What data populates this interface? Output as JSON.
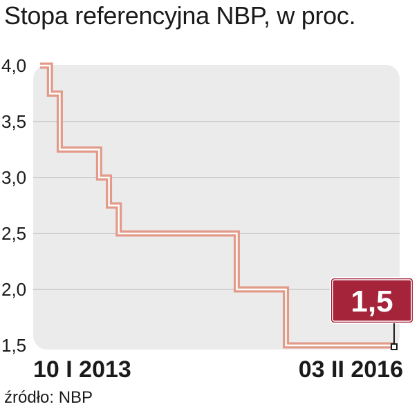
{
  "title": "Stopa referencyjna NBP, w proc.",
  "source": "źródło: NBP",
  "colors": {
    "line": "#e39a88",
    "panel": "#ebebeb",
    "grid": "#c8c8c8",
    "callout": "#a5243a"
  },
  "chart_data": {
    "type": "line",
    "step": true,
    "title": "Stopa referencyjna NBP, w proc.",
    "xlabel": "",
    "ylabel": "",
    "ylim": [
      1.5,
      4.0
    ],
    "yticks": [
      "4,0",
      "3,5",
      "3,0",
      "2,5",
      "2,0",
      "1,5"
    ],
    "ytick_values": [
      4.0,
      3.5,
      3.0,
      2.5,
      2.0,
      1.5
    ],
    "x_start_label": "10 I 2013",
    "x_end_label": "03 II 2016",
    "xlim": [
      0,
      36
    ],
    "points": [
      {
        "x": 0,
        "y": 4.0
      },
      {
        "x": 1,
        "y": 3.75
      },
      {
        "x": 2,
        "y": 3.25
      },
      {
        "x": 6,
        "y": 3.0
      },
      {
        "x": 7,
        "y": 2.75
      },
      {
        "x": 8,
        "y": 2.5
      },
      {
        "x": 20,
        "y": 2.0
      },
      {
        "x": 25,
        "y": 1.5
      },
      {
        "x": 36,
        "y": 1.5
      }
    ],
    "callout": "1,5"
  }
}
